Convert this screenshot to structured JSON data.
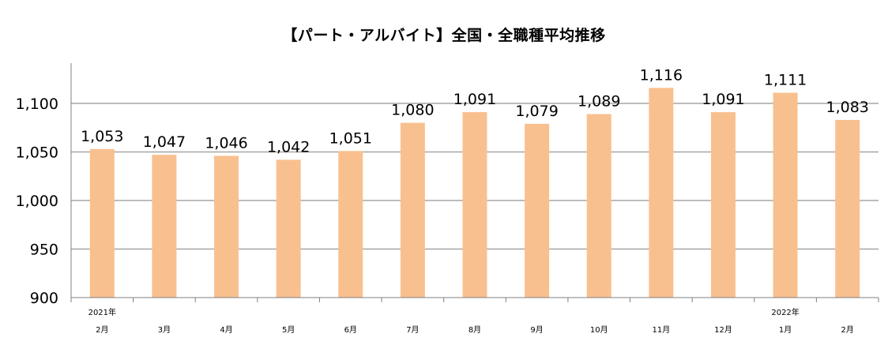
{
  "chart_data": {
    "type": "bar",
    "title": "【パート・アルバイト】全国・全職種平均推移",
    "xlabel": "",
    "ylabel": "",
    "ylim": [
      900,
      1150
    ],
    "yticks": [
      "900",
      "950",
      "1,000",
      "1,050",
      "1,100"
    ],
    "ytick_values": [
      900,
      950,
      1000,
      1050,
      1100
    ],
    "categories": [
      {
        "year": "2021年",
        "month": "2月"
      },
      {
        "year": "",
        "month": "3月"
      },
      {
        "year": "",
        "month": "4月"
      },
      {
        "year": "",
        "month": "5月"
      },
      {
        "year": "",
        "month": "6月"
      },
      {
        "year": "",
        "month": "7月"
      },
      {
        "year": "",
        "month": "8月"
      },
      {
        "year": "",
        "month": "9月"
      },
      {
        "year": "",
        "month": "10月"
      },
      {
        "year": "",
        "month": "11月"
      },
      {
        "year": "",
        "month": "12月"
      },
      {
        "year": "2022年",
        "month": "1月"
      },
      {
        "year": "",
        "month": "2月"
      }
    ],
    "values": [
      1053,
      1047,
      1046,
      1042,
      1051,
      1080,
      1091,
      1079,
      1089,
      1116,
      1091,
      1111,
      1083
    ],
    "data_labels": [
      "1,053",
      "1,047",
      "1,046",
      "1,042",
      "1,051",
      "1,080",
      "1,091",
      "1,079",
      "1,089",
      "1,116",
      "1,091",
      "1,111",
      "1,083"
    ],
    "grid": true,
    "legend": "none",
    "colors": {
      "bar": "#F9C08F",
      "grid": "#A6A6A6",
      "axis": "#808080"
    }
  }
}
